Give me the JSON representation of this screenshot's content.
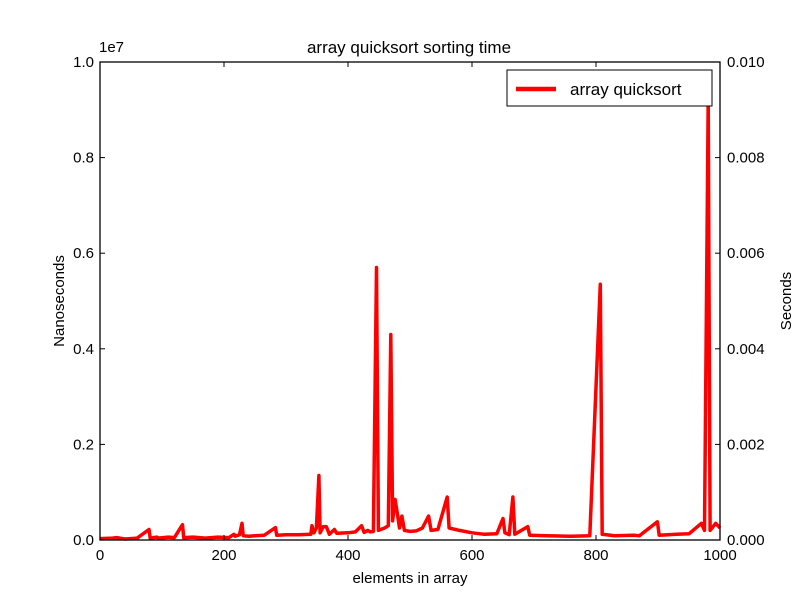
{
  "chart_data": {
    "type": "line",
    "title": "array quicksort sorting time",
    "xlabel": "elements in array",
    "ylabel": "Nanoseconds",
    "y2label": "Seconds",
    "y_offset_label": "1e7",
    "xlim": [
      0,
      1000
    ],
    "ylim": [
      0,
      10000000
    ],
    "y2lim": [
      0,
      0.01
    ],
    "x_ticks": [
      "0",
      "200",
      "400",
      "600",
      "800",
      "1000"
    ],
    "y_ticks": [
      "0.0",
      "0.2",
      "0.4",
      "0.6",
      "0.8",
      "1.0"
    ],
    "y2_ticks": [
      "0.000",
      "0.002",
      "0.004",
      "0.006",
      "0.008",
      "0.010"
    ],
    "grid": false,
    "legend_position": "top-right",
    "line_color": "#ff0000",
    "series": [
      {
        "name": "array quicksort",
        "points": [
          [
            0,
            30000
          ],
          [
            20,
            40000
          ],
          [
            27,
            50000
          ],
          [
            40,
            20000
          ],
          [
            60,
            40000
          ],
          [
            79,
            220000
          ],
          [
            81,
            40000
          ],
          [
            92,
            60000
          ],
          [
            94,
            40000
          ],
          [
            110,
            60000
          ],
          [
            120,
            50000
          ],
          [
            133,
            320000
          ],
          [
            135,
            50000
          ],
          [
            150,
            60000
          ],
          [
            170,
            40000
          ],
          [
            190,
            60000
          ],
          [
            208,
            50000
          ],
          [
            216,
            120000
          ],
          [
            218,
            80000
          ],
          [
            225,
            110000
          ],
          [
            229,
            350000
          ],
          [
            231,
            90000
          ],
          [
            240,
            80000
          ],
          [
            250,
            90000
          ],
          [
            265,
            100000
          ],
          [
            283,
            260000
          ],
          [
            285,
            100000
          ],
          [
            300,
            110000
          ],
          [
            320,
            110000
          ],
          [
            340,
            120000
          ],
          [
            342,
            300000
          ],
          [
            345,
            150000
          ],
          [
            349,
            250000
          ],
          [
            353,
            1350000
          ],
          [
            355,
            150000
          ],
          [
            360,
            280000
          ],
          [
            365,
            280000
          ],
          [
            370,
            120000
          ],
          [
            378,
            220000
          ],
          [
            382,
            140000
          ],
          [
            400,
            150000
          ],
          [
            412,
            170000
          ],
          [
            422,
            300000
          ],
          [
            426,
            160000
          ],
          [
            432,
            200000
          ],
          [
            436,
            170000
          ],
          [
            441,
            180000
          ],
          [
            446,
            5700000
          ],
          [
            449,
            200000
          ],
          [
            459,
            250000
          ],
          [
            465,
            300000
          ],
          [
            469,
            4300000
          ],
          [
            472,
            400000
          ],
          [
            476,
            850000
          ],
          [
            479,
            600000
          ],
          [
            483,
            250000
          ],
          [
            487,
            500000
          ],
          [
            491,
            200000
          ],
          [
            500,
            180000
          ],
          [
            510,
            190000
          ],
          [
            520,
            250000
          ],
          [
            530,
            500000
          ],
          [
            534,
            200000
          ],
          [
            545,
            220000
          ],
          [
            560,
            900000
          ],
          [
            563,
            250000
          ],
          [
            580,
            200000
          ],
          [
            600,
            150000
          ],
          [
            620,
            120000
          ],
          [
            640,
            130000
          ],
          [
            650,
            450000
          ],
          [
            653,
            150000
          ],
          [
            660,
            110000
          ],
          [
            666,
            900000
          ],
          [
            669,
            120000
          ],
          [
            690,
            280000
          ],
          [
            693,
            100000
          ],
          [
            720,
            90000
          ],
          [
            760,
            80000
          ],
          [
            790,
            90000
          ],
          [
            807,
            5350000
          ],
          [
            810,
            120000
          ],
          [
            830,
            90000
          ],
          [
            860,
            100000
          ],
          [
            870,
            90000
          ],
          [
            899,
            380000
          ],
          [
            902,
            100000
          ],
          [
            930,
            120000
          ],
          [
            950,
            130000
          ],
          [
            970,
            350000
          ],
          [
            975,
            200000
          ],
          [
            981,
            9200000
          ],
          [
            984,
            200000
          ],
          [
            993,
            350000
          ],
          [
            1000,
            250000
          ]
        ]
      }
    ]
  }
}
